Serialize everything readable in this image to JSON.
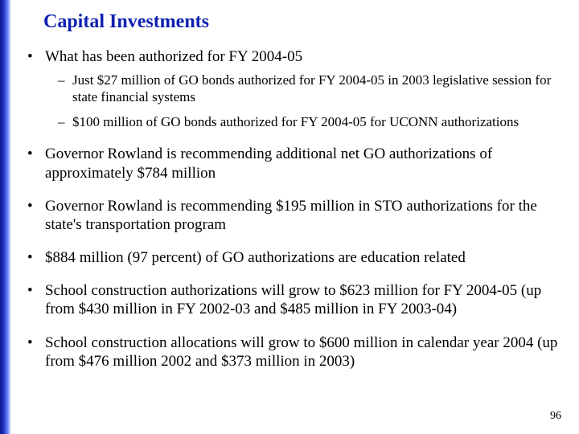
{
  "title": "Capital Investments",
  "accent_color": "#0b1fb0",
  "gradient_colors": [
    "#0a1a8a",
    "#2030c0",
    "#6a8aff",
    "#ffffff"
  ],
  "background_color": "#ffffff",
  "text_color": "#000000",
  "title_fontsize": 24,
  "body_fontsize": 19,
  "sub_fontsize": 17,
  "bullets": [
    {
      "text": "What has been authorized for FY 2004-05",
      "sub": [
        "Just $27 million of GO bonds authorized for FY 2004-05 in 2003 legislative session for state financial systems",
        "$100 million of GO bonds authorized for FY 2004-05 for UCONN authorizations"
      ]
    },
    {
      "text": "Governor Rowland is recommending additional net GO authorizations of approximately $784 million",
      "sub": []
    },
    {
      "text": "Governor Rowland is recommending $195 million in STO authorizations for the state's transportation program",
      "sub": []
    },
    {
      "text": "$884 million (97 percent) of GO authorizations are education related",
      "sub": []
    },
    {
      "text": "School construction authorizations will grow to $623 million for FY 2004-05 (up from $430 million in FY 2002-03 and $485 million in FY 2003-04)",
      "sub": []
    },
    {
      "text": "School construction allocations will grow to $600 million in calendar year 2004 (up from $476 million 2002 and $373 million in 2003)",
      "sub": []
    }
  ],
  "page_number": "96"
}
